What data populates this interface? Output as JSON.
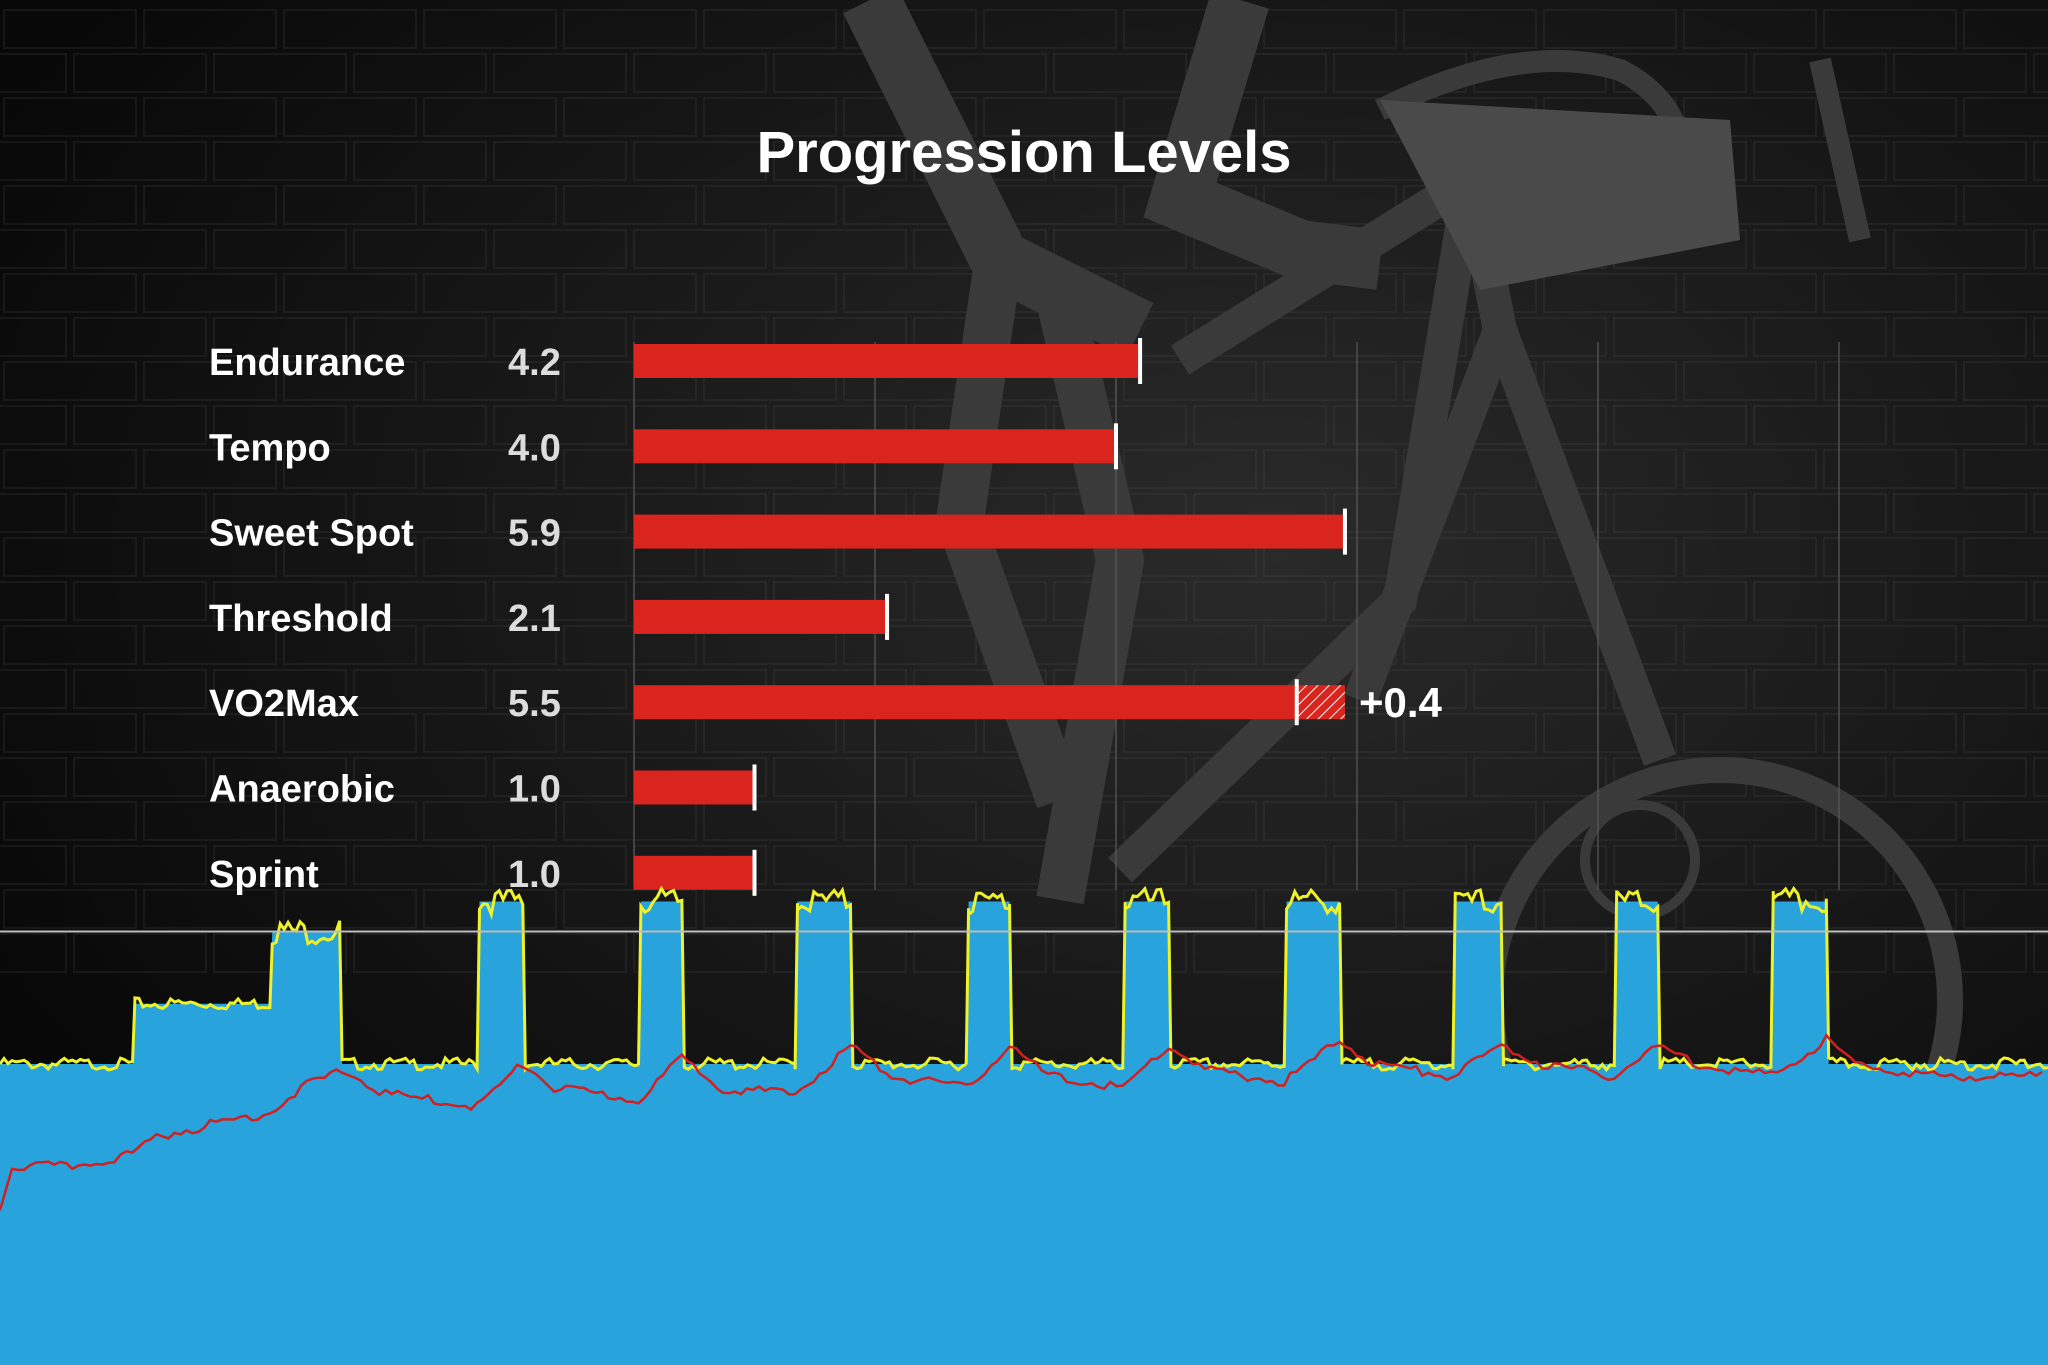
{
  "colors": {
    "background": "#0b0b0b",
    "bar": "#d9251d",
    "bar_hatch": "#d9251d",
    "marker": "#ffffff",
    "text": "#ffffff",
    "value_text": "#dcdcdc",
    "grid": "#5a5a5a",
    "power_fill": "#29a3dc",
    "power_line": "#eef22a",
    "heart_rate_line": "#d21f1f",
    "ftp_line": "#bdbdbd"
  },
  "chart_data": [
    {
      "type": "bar",
      "orientation": "horizontal",
      "title": "Progression Levels",
      "categories": [
        "Endurance",
        "Tempo",
        "Sweet Spot",
        "Threshold",
        "VO2Max",
        "Anaerobic",
        "Sprint"
      ],
      "values": [
        4.2,
        4.0,
        5.9,
        2.1,
        5.5,
        1.0,
        1.0
      ],
      "value_labels": [
        "4.2",
        "4.0",
        "5.9",
        "2.1",
        "5.5",
        "1.0",
        "1.0"
      ],
      "increase": {
        "category": "VO2Max",
        "value": 0.4,
        "label": "+0.4"
      },
      "xlim": [
        0,
        10
      ],
      "grid": true,
      "gridlines_at": [
        2,
        4,
        6,
        8,
        10
      ]
    },
    {
      "type": "area",
      "title": "",
      "x_units": "minutes",
      "xlim": [
        0,
        85
      ],
      "ylim": [
        0,
        12
      ],
      "reference_line": 7.2,
      "series": [
        {
          "role": "power",
          "values": [
            [
              0,
              5.0
            ],
            [
              5.5,
              5.0
            ],
            [
              5.6,
              6.0
            ],
            [
              11.2,
              6.0
            ],
            [
              11.3,
              7.2
            ],
            [
              14.1,
              7.2
            ],
            [
              14.2,
              5.0
            ],
            [
              19.8,
              5.0
            ],
            [
              19.9,
              7.7
            ],
            [
              21.7,
              7.7
            ],
            [
              21.8,
              5.0
            ],
            [
              26.5,
              5.0
            ],
            [
              26.6,
              7.7
            ],
            [
              28.3,
              7.7
            ],
            [
              28.4,
              5.0
            ],
            [
              33.0,
              5.0
            ],
            [
              33.1,
              7.7
            ],
            [
              35.3,
              7.7
            ],
            [
              35.4,
              5.0
            ],
            [
              40.1,
              5.0
            ],
            [
              40.2,
              7.7
            ],
            [
              41.9,
              7.7
            ],
            [
              42.0,
              5.0
            ],
            [
              46.6,
              5.0
            ],
            [
              46.7,
              7.7
            ],
            [
              48.5,
              7.7
            ],
            [
              48.6,
              5.0
            ],
            [
              53.3,
              5.0
            ],
            [
              53.4,
              7.7
            ],
            [
              55.6,
              7.7
            ],
            [
              55.7,
              5.0
            ],
            [
              60.3,
              5.0
            ],
            [
              60.4,
              7.7
            ],
            [
              62.3,
              7.7
            ],
            [
              62.4,
              5.0
            ],
            [
              67.0,
              5.0
            ],
            [
              67.1,
              7.7
            ],
            [
              68.8,
              7.7
            ],
            [
              68.9,
              5.0
            ],
            [
              73.5,
              5.0
            ],
            [
              73.6,
              7.7
            ],
            [
              75.8,
              7.7
            ],
            [
              75.9,
              5.0
            ],
            [
              85,
              5.0
            ]
          ]
        },
        {
          "role": "heart_rate",
          "values": [
            [
              0,
              2.6
            ],
            [
              0.5,
              3.3
            ],
            [
              3,
              3.3
            ],
            [
              5.5,
              3.5
            ],
            [
              6.5,
              3.8
            ],
            [
              11.2,
              4.2
            ],
            [
              12.5,
              4.6
            ],
            [
              14.2,
              4.9
            ],
            [
              16,
              4.5
            ],
            [
              19.8,
              4.3
            ],
            [
              21.7,
              5.0
            ],
            [
              23,
              4.6
            ],
            [
              26.5,
              4.4
            ],
            [
              28.3,
              5.1
            ],
            [
              30,
              4.6
            ],
            [
              33.0,
              4.5
            ],
            [
              35.3,
              5.3
            ],
            [
              37,
              4.8
            ],
            [
              40.1,
              4.6
            ],
            [
              41.9,
              5.3
            ],
            [
              43.5,
              4.8
            ],
            [
              46.6,
              4.6
            ],
            [
              48.5,
              5.3
            ],
            [
              50,
              4.9
            ],
            [
              53.3,
              4.7
            ],
            [
              55.6,
              5.4
            ],
            [
              57,
              5.0
            ],
            [
              60.3,
              4.8
            ],
            [
              62.3,
              5.3
            ],
            [
              64,
              5.0
            ],
            [
              67.0,
              4.8
            ],
            [
              68.8,
              5.3
            ],
            [
              70.5,
              5.0
            ],
            [
              73.5,
              4.8
            ],
            [
              75.8,
              5.4
            ],
            [
              77,
              5.0
            ],
            [
              80,
              4.8
            ],
            [
              85,
              4.8
            ]
          ]
        }
      ]
    }
  ]
}
